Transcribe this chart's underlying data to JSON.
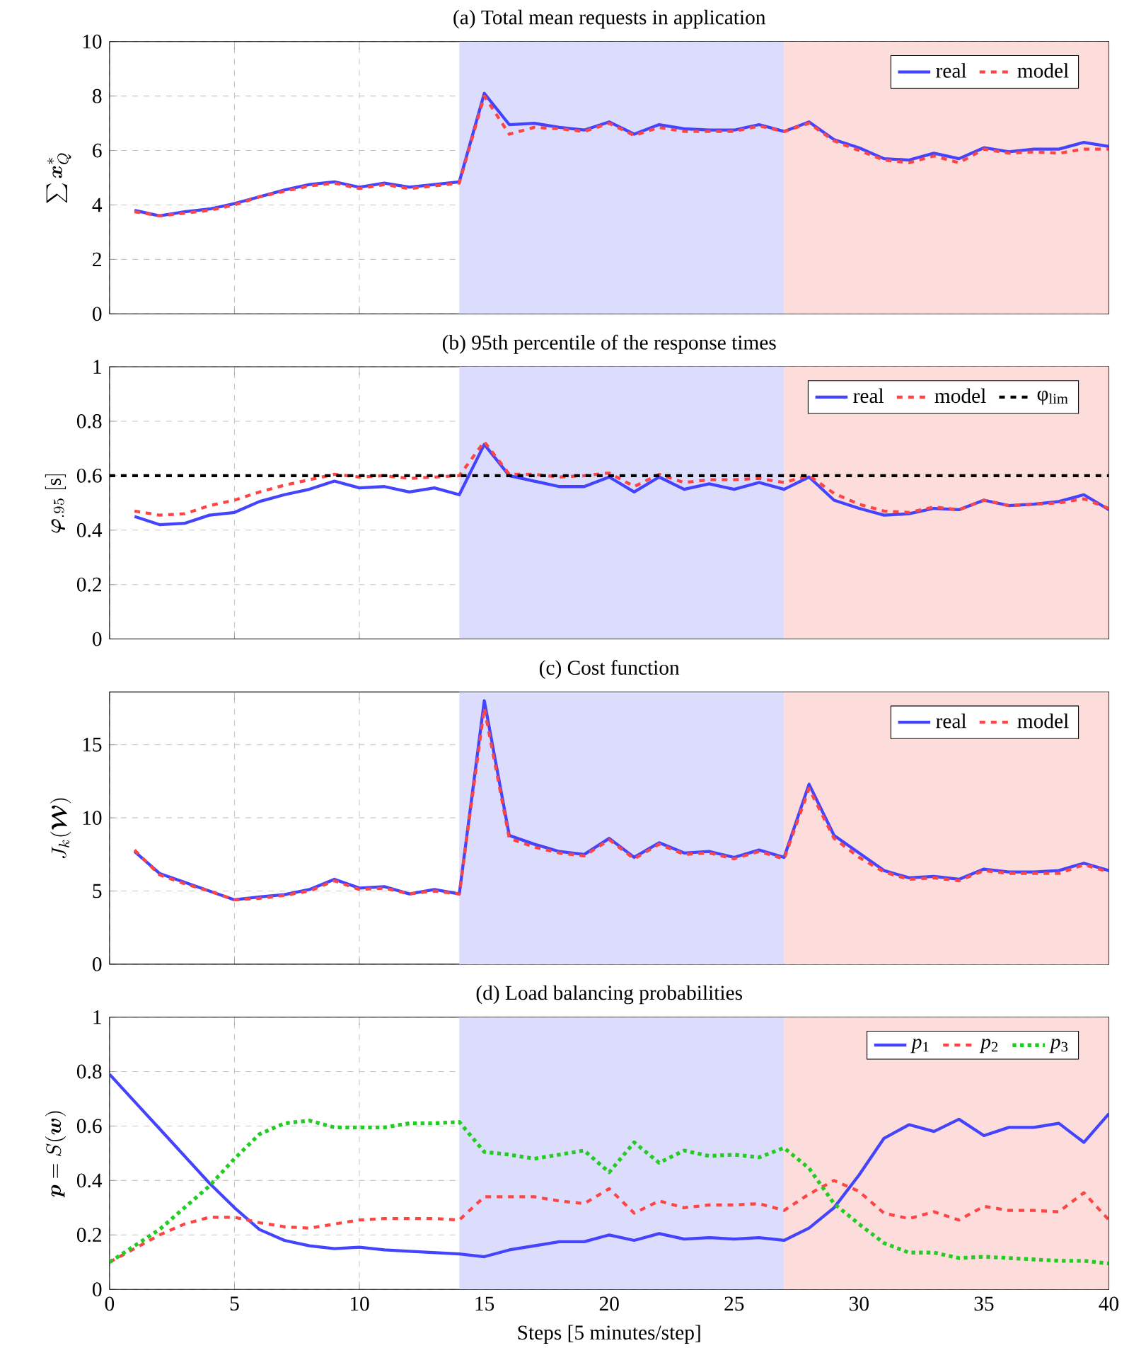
{
  "chart_data": [
    {
      "type": "line",
      "title": "(a) Total mean requests in application",
      "ylabel": "\\sum \\boldsymbol{x}^*_Q",
      "x": [
        1,
        2,
        3,
        4,
        5,
        6,
        7,
        8,
        9,
        10,
        11,
        12,
        13,
        14,
        15,
        16,
        17,
        18,
        19,
        20,
        21,
        22,
        23,
        24,
        25,
        26,
        27,
        28,
        29,
        30,
        31,
        32,
        33,
        34,
        35,
        36,
        37,
        38,
        39,
        40
      ],
      "series": [
        {
          "name": "real",
          "color": "#4444ff",
          "line_style": "solid",
          "values": [
            3.8,
            3.6,
            3.75,
            3.85,
            4.05,
            4.3,
            4.55,
            4.75,
            4.85,
            4.65,
            4.8,
            4.65,
            4.75,
            4.85,
            8.1,
            6.95,
            7.0,
            6.85,
            6.75,
            7.05,
            6.6,
            6.95,
            6.8,
            6.75,
            6.75,
            6.95,
            6.7,
            7.05,
            6.4,
            6.1,
            5.7,
            5.65,
            5.9,
            5.7,
            6.1,
            5.95,
            6.05,
            6.05,
            6.3,
            6.15
          ]
        },
        {
          "name": "model",
          "color": "#ff4444",
          "line_style": "dashed",
          "values": [
            3.75,
            3.6,
            3.7,
            3.8,
            4.0,
            4.3,
            4.5,
            4.7,
            4.8,
            4.6,
            4.75,
            4.6,
            4.7,
            4.8,
            8.0,
            6.6,
            6.85,
            6.8,
            6.7,
            7.0,
            6.55,
            6.85,
            6.7,
            6.7,
            6.7,
            6.9,
            6.7,
            7.0,
            6.35,
            6.0,
            5.65,
            5.55,
            5.8,
            5.55,
            6.05,
            5.9,
            5.95,
            5.9,
            6.05,
            6.05
          ]
        }
      ],
      "bands": [
        {
          "axis": "x",
          "from": 14,
          "to": 27,
          "color": "#dcdcfc"
        },
        {
          "axis": "x",
          "from": 27,
          "to": 40,
          "color": "#fddcdc"
        }
      ],
      "xlim": [
        0,
        40
      ],
      "xticks": [
        0,
        5,
        10,
        15,
        20,
        25,
        30,
        35,
        40
      ],
      "ylim": [
        0,
        10
      ],
      "yticks": [
        0,
        2,
        4,
        6,
        8,
        10
      ],
      "grid": true,
      "legend": "top right",
      "tick_labels": "y"
    },
    {
      "type": "line",
      "title": "(b) 95th percentile of the response times",
      "ylabel": "\\boldsymbol{\\varphi}_{.95}\\ [\\mathrm{s}]",
      "x": [
        1,
        2,
        3,
        4,
        5,
        6,
        7,
        8,
        9,
        10,
        11,
        12,
        13,
        14,
        15,
        16,
        17,
        18,
        19,
        20,
        21,
        22,
        23,
        24,
        25,
        26,
        27,
        28,
        29,
        30,
        31,
        32,
        33,
        34,
        35,
        36,
        37,
        38,
        39,
        40
      ],
      "series": [
        {
          "name": "real",
          "color": "#4444ff",
          "line_style": "solid",
          "values": [
            0.45,
            0.42,
            0.425,
            0.455,
            0.465,
            0.505,
            0.53,
            0.55,
            0.58,
            0.555,
            0.56,
            0.54,
            0.555,
            0.53,
            0.715,
            0.6,
            0.58,
            0.56,
            0.56,
            0.595,
            0.54,
            0.595,
            0.55,
            0.57,
            0.55,
            0.575,
            0.55,
            0.595,
            0.51,
            0.48,
            0.455,
            0.46,
            0.48,
            0.475,
            0.51,
            0.49,
            0.495,
            0.505,
            0.53,
            0.475
          ]
        },
        {
          "name": "model",
          "color": "#ff4444",
          "line_style": "dashed",
          "values": [
            0.47,
            0.455,
            0.46,
            0.49,
            0.51,
            0.54,
            0.565,
            0.585,
            0.605,
            0.595,
            0.6,
            0.59,
            0.595,
            0.6,
            0.725,
            0.605,
            0.605,
            0.595,
            0.6,
            0.61,
            0.56,
            0.605,
            0.575,
            0.585,
            0.585,
            0.59,
            0.575,
            0.6,
            0.535,
            0.495,
            0.47,
            0.465,
            0.485,
            0.475,
            0.51,
            0.49,
            0.495,
            0.5,
            0.515,
            0.48
          ]
        }
      ],
      "ref_lines": [
        {
          "axis": "y",
          "value": 0.6,
          "label": "φ$_{lim}$",
          "color": "#000000",
          "line_style": "dashed"
        }
      ],
      "bands": [
        {
          "axis": "x",
          "from": 14,
          "to": 27,
          "color": "#dcdcfc"
        },
        {
          "axis": "x",
          "from": 27,
          "to": 40,
          "color": "#fddcdc"
        }
      ],
      "xlim": [
        0,
        40
      ],
      "xticks": [
        0,
        5,
        10,
        15,
        20,
        25,
        30,
        35,
        40
      ],
      "ylim": [
        0,
        1
      ],
      "yticks": [
        0,
        0.2,
        0.4,
        0.6,
        0.8,
        1
      ],
      "grid": true,
      "legend": "top right",
      "tick_labels": "y"
    },
    {
      "type": "line",
      "title": "(c) Cost function",
      "ylabel": "J_k(\\boldsymbol{\\mathcal{W}})",
      "x": [
        1,
        2,
        3,
        4,
        5,
        6,
        7,
        8,
        9,
        10,
        11,
        12,
        13,
        14,
        15,
        16,
        17,
        18,
        19,
        20,
        21,
        22,
        23,
        24,
        25,
        26,
        27,
        28,
        29,
        30,
        31,
        32,
        33,
        34,
        35,
        36,
        37,
        38,
        39,
        40
      ],
      "series": [
        {
          "name": "real",
          "color": "#4444ff",
          "line_style": "solid",
          "values": [
            7.7,
            6.2,
            5.6,
            5.0,
            4.4,
            4.6,
            4.75,
            5.1,
            5.8,
            5.2,
            5.3,
            4.8,
            5.1,
            4.8,
            18.0,
            8.8,
            8.2,
            7.7,
            7.5,
            8.6,
            7.3,
            8.3,
            7.6,
            7.7,
            7.3,
            7.8,
            7.3,
            12.3,
            8.8,
            7.6,
            6.4,
            5.9,
            6.0,
            5.8,
            6.5,
            6.3,
            6.3,
            6.4,
            6.9,
            6.4
          ]
        },
        {
          "name": "model",
          "color": "#ff4444",
          "line_style": "dashed",
          "values": [
            7.8,
            6.1,
            5.5,
            5.0,
            4.4,
            4.5,
            4.7,
            5.0,
            5.7,
            5.1,
            5.2,
            4.8,
            5.0,
            4.8,
            17.5,
            8.6,
            8.0,
            7.6,
            7.4,
            8.5,
            7.2,
            8.2,
            7.5,
            7.6,
            7.2,
            7.7,
            7.2,
            12.0,
            8.6,
            7.3,
            6.3,
            5.8,
            5.9,
            5.7,
            6.4,
            6.2,
            6.2,
            6.2,
            6.8,
            6.3
          ]
        }
      ],
      "bands": [
        {
          "axis": "x",
          "from": 14,
          "to": 27,
          "color": "#dcdcfc"
        },
        {
          "axis": "x",
          "from": 27,
          "to": 40,
          "color": "#fddcdc"
        }
      ],
      "xlim": [
        0,
        40
      ],
      "xticks": [
        0,
        5,
        10,
        15,
        20,
        25,
        30,
        35,
        40
      ],
      "ylim": [
        0,
        18.6
      ],
      "yticks": [
        0,
        5,
        10,
        15
      ],
      "grid": true,
      "legend": "top right",
      "tick_labels": "y"
    },
    {
      "type": "line",
      "title": "(d) Load balancing probabilities",
      "ylabel": "\\boldsymbol{p} = S(\\boldsymbol{w})",
      "xlabel": "Steps [5 minutes/step]",
      "x": [
        0,
        1,
        2,
        3,
        4,
        5,
        6,
        7,
        8,
        9,
        10,
        11,
        12,
        13,
        14,
        15,
        16,
        17,
        18,
        19,
        20,
        21,
        22,
        23,
        24,
        25,
        26,
        27,
        28,
        29,
        30,
        31,
        32,
        33,
        34,
        35,
        36,
        37,
        38,
        39,
        40
      ],
      "series": [
        {
          "name": "*p*$_{1}$",
          "color": "#4444ff",
          "line_style": "solid",
          "values": [
            0.79,
            0.69,
            0.59,
            0.49,
            0.39,
            0.3,
            0.22,
            0.18,
            0.16,
            0.15,
            0.155,
            0.145,
            0.14,
            0.135,
            0.13,
            0.12,
            0.145,
            0.16,
            0.175,
            0.175,
            0.2,
            0.18,
            0.205,
            0.185,
            0.19,
            0.185,
            0.19,
            0.18,
            0.225,
            0.3,
            0.42,
            0.555,
            0.605,
            0.58,
            0.625,
            0.565,
            0.595,
            0.595,
            0.61,
            0.54,
            0.645
          ]
        },
        {
          "name": "*p*$_{2}$",
          "color": "#ff4444",
          "line_style": "dashed",
          "values": [
            0.1,
            0.15,
            0.2,
            0.24,
            0.265,
            0.265,
            0.245,
            0.23,
            0.225,
            0.24,
            0.255,
            0.26,
            0.26,
            0.26,
            0.255,
            0.34,
            0.34,
            0.34,
            0.325,
            0.315,
            0.37,
            0.28,
            0.325,
            0.3,
            0.31,
            0.31,
            0.315,
            0.29,
            0.35,
            0.4,
            0.36,
            0.28,
            0.26,
            0.285,
            0.255,
            0.305,
            0.29,
            0.29,
            0.285,
            0.355,
            0.255
          ]
        },
        {
          "name": "*p*$_{3}$",
          "color": "#22cc22",
          "line_style": "dotted",
          "values": [
            0.1,
            0.16,
            0.22,
            0.3,
            0.38,
            0.48,
            0.57,
            0.61,
            0.62,
            0.595,
            0.595,
            0.595,
            0.61,
            0.61,
            0.615,
            0.505,
            0.495,
            0.48,
            0.495,
            0.51,
            0.43,
            0.54,
            0.465,
            0.51,
            0.49,
            0.495,
            0.485,
            0.52,
            0.445,
            0.315,
            0.24,
            0.17,
            0.135,
            0.135,
            0.115,
            0.12,
            0.115,
            0.11,
            0.105,
            0.105,
            0.095
          ]
        }
      ],
      "bands": [
        {
          "axis": "x",
          "from": 14,
          "to": 27,
          "color": "#dcdcfc"
        },
        {
          "axis": "x",
          "from": 27,
          "to": 40,
          "color": "#fddcdc"
        }
      ],
      "xlim": [
        0,
        40
      ],
      "xticks": [
        0,
        5,
        10,
        15,
        20,
        25,
        30,
        35,
        40
      ],
      "ylim": [
        0,
        1
      ],
      "yticks": [
        0,
        0.2,
        0.4,
        0.6,
        0.8,
        1
      ],
      "grid": true,
      "legend": "top right"
    }
  ]
}
